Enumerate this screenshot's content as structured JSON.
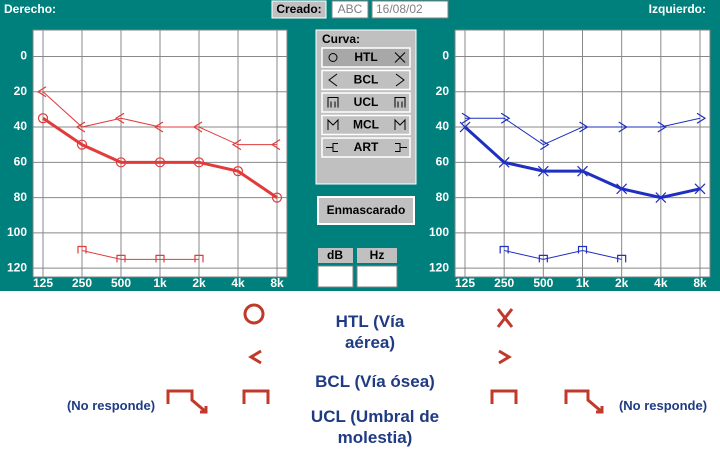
{
  "header": {
    "left_label": "Derecho:",
    "created_button": "Creado:",
    "author": "ABC",
    "date": "16/08/02",
    "right_label": "Izquierdo:"
  },
  "curve_panel": {
    "title": "Curva:",
    "buttons": [
      "HTL",
      "BCL",
      "UCL",
      "MCL",
      "ART"
    ],
    "mask_button": "Enmascarado",
    "db_label": "dB",
    "hz_label": "Hz"
  },
  "chart_data": [
    {
      "type": "line",
      "categories": [
        "125",
        "250",
        "500",
        "1k",
        "2k",
        "4k",
        "8k"
      ],
      "ylim": [
        -15,
        125
      ],
      "invert_y": true,
      "yticks": [
        0,
        20,
        40,
        60,
        80,
        100,
        120
      ],
      "grid": true,
      "series": [
        {
          "color": "#e03c3c",
          "marker": "circle",
          "width": 3,
          "values": [
            35,
            50,
            60,
            60,
            60,
            65,
            80
          ]
        },
        {
          "color": "#e03c3c",
          "marker": "less",
          "width": 1,
          "values": [
            20,
            40,
            35,
            40,
            40,
            50,
            50
          ]
        },
        {
          "color": "#e03c3c",
          "marker": "bracket",
          "width": 1,
          "values": [
            null,
            110,
            115,
            115,
            115,
            null,
            null
          ]
        }
      ]
    },
    {
      "type": "line",
      "categories": [
        "125",
        "250",
        "500",
        "1k",
        "2k",
        "4k",
        "8k"
      ],
      "ylim": [
        -15,
        125
      ],
      "invert_y": true,
      "yticks": [
        0,
        20,
        40,
        60,
        80,
        100,
        120
      ],
      "grid": true,
      "series": [
        {
          "color": "#1f2fbf",
          "marker": "x",
          "width": 3,
          "values": [
            40,
            60,
            65,
            65,
            75,
            80,
            75
          ]
        },
        {
          "color": "#1f2fbf",
          "marker": "greater",
          "width": 1,
          "values": [
            35,
            35,
            50,
            40,
            40,
            40,
            35
          ]
        },
        {
          "color": "#1f2fbf",
          "marker": "bracket",
          "width": 1,
          "values": [
            null,
            110,
            115,
            110,
            115,
            null,
            null
          ]
        }
      ]
    }
  ],
  "legend": {
    "htl": "HTL (Vía aérea)",
    "bcl": "BCL (Vía ósea)",
    "ucl": "UCL (Umbral de molestia)",
    "no_response_left": "(No responde)",
    "no_response_right": "(No responde)"
  }
}
